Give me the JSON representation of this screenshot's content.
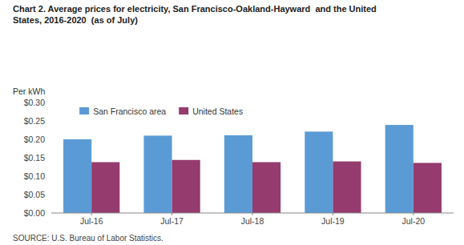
{
  "chart_data": {
    "type": "bar",
    "title": "Chart 2. Average prices for electricity, San Francisco-Oakland-Hayward  and the United\nStates, 2016-2020  (as of July)",
    "y_label": "Per kWh",
    "source": "SOURCE: U.S. Bureau of Labor Statistics.",
    "categories": [
      "Jul-16",
      "Jul-17",
      "Jul-18",
      "Jul-19",
      "Jul-20"
    ],
    "series": [
      {
        "name": "San Francisco area",
        "color": "#5B9BD5",
        "values": [
          0.2,
          0.21,
          0.211,
          0.221,
          0.239
        ]
      },
      {
        "name": "United States",
        "color": "#953B6E",
        "values": [
          0.138,
          0.144,
          0.138,
          0.14,
          0.136
        ]
      }
    ],
    "ylim": [
      0.0,
      0.3
    ],
    "yticks": [
      {
        "value": 0.0,
        "label": "$0.00"
      },
      {
        "value": 0.05,
        "label": "$0.05"
      },
      {
        "value": 0.1,
        "label": "$0.10"
      },
      {
        "value": 0.15,
        "label": "$0.15"
      },
      {
        "value": 0.2,
        "label": "$0.20"
      },
      {
        "value": 0.25,
        "label": "$0.25"
      },
      {
        "value": 0.3,
        "label": "$0.30"
      }
    ],
    "grid": false,
    "legend": "top-left"
  }
}
